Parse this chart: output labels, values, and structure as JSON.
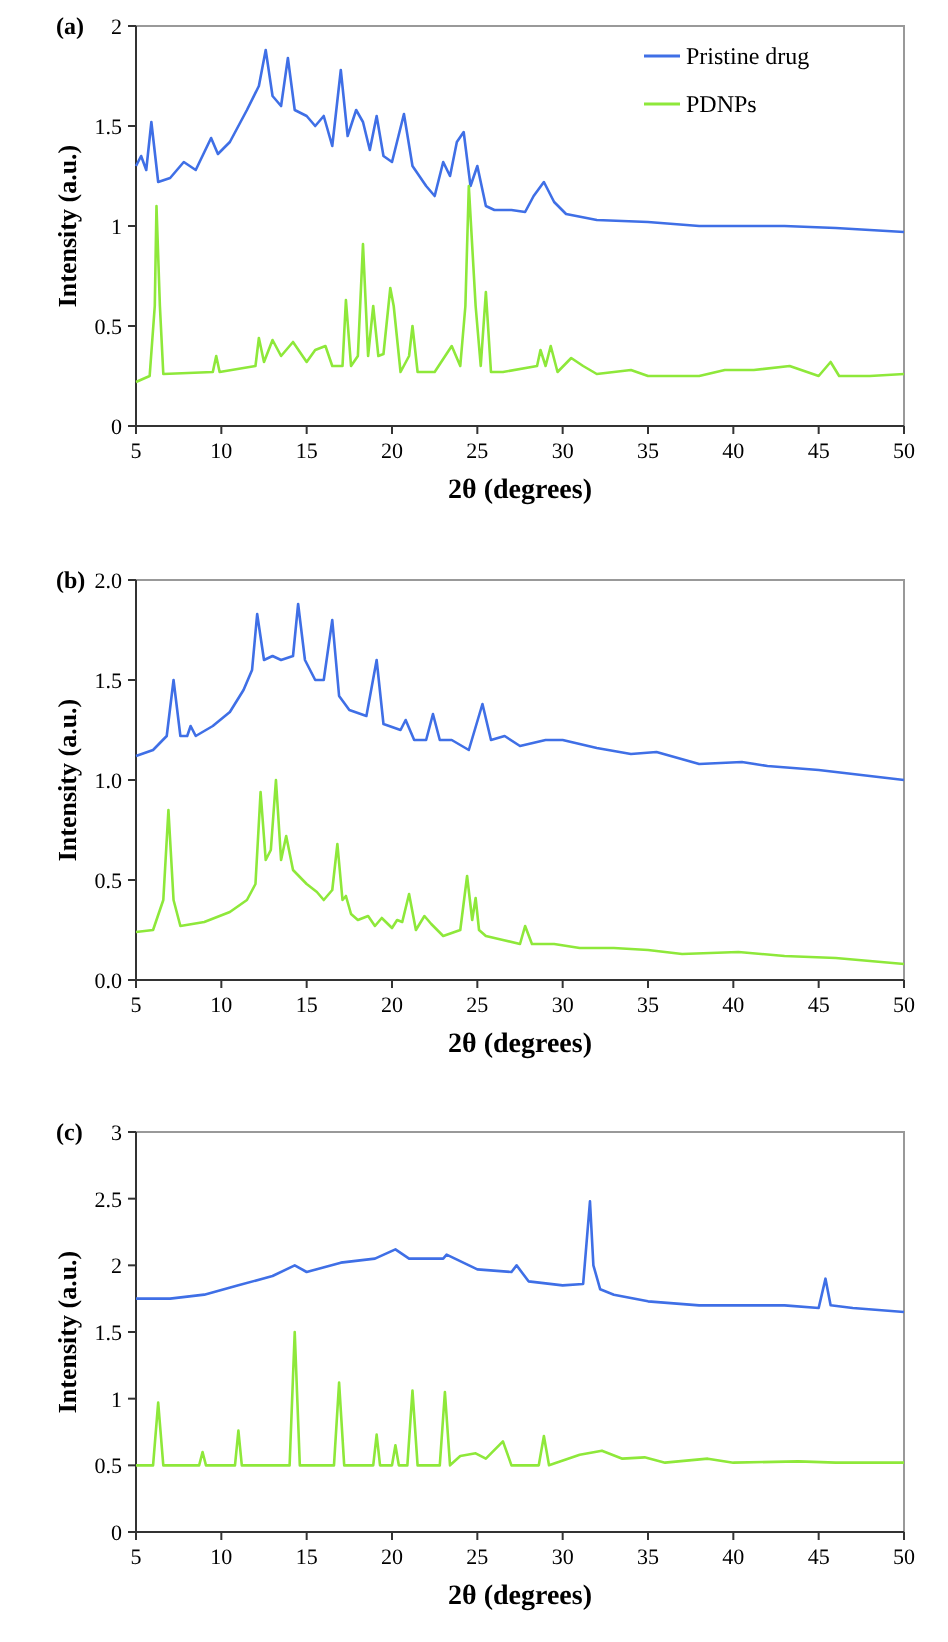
{
  "chart_data": [
    {
      "type": "line",
      "title": "(a)",
      "xlabel": "2θ (degrees)",
      "ylabel": "Intensity (a.u.)",
      "xlim": [
        5,
        50
      ],
      "xticks": [
        5,
        10,
        15,
        20,
        25,
        30,
        35,
        40,
        45,
        50
      ],
      "ylim": [
        0,
        2
      ],
      "yticks": [
        0,
        0.5,
        1,
        1.5,
        2
      ],
      "legend": "top right",
      "series": [
        {
          "name": "Pristine drug",
          "color": "#3f6fe6",
          "x": [
            5,
            5.3,
            5.6,
            5.9,
            6.3,
            7,
            7.8,
            8.5,
            9.4,
            9.8,
            10.5,
            11.5,
            12.2,
            12.6,
            13,
            13.5,
            13.9,
            14.3,
            15,
            15.5,
            16,
            16.5,
            17,
            17.4,
            17.9,
            18.3,
            18.7,
            19.1,
            19.5,
            20,
            20.7,
            21.2,
            22,
            22.5,
            23,
            23.4,
            23.8,
            24.2,
            24.6,
            25,
            25.5,
            26,
            27,
            27.8,
            28.3,
            28.9,
            29.5,
            30.2,
            32,
            35,
            38,
            40,
            43,
            46,
            48,
            50
          ],
          "values": [
            1.3,
            1.35,
            1.28,
            1.52,
            1.22,
            1.24,
            1.32,
            1.28,
            1.44,
            1.36,
            1.42,
            1.58,
            1.7,
            1.88,
            1.65,
            1.6,
            1.84,
            1.58,
            1.55,
            1.5,
            1.55,
            1.4,
            1.78,
            1.45,
            1.58,
            1.52,
            1.38,
            1.55,
            1.35,
            1.32,
            1.56,
            1.3,
            1.2,
            1.15,
            1.32,
            1.25,
            1.42,
            1.47,
            1.2,
            1.3,
            1.1,
            1.08,
            1.08,
            1.07,
            1.15,
            1.22,
            1.12,
            1.06,
            1.03,
            1.02,
            1.0,
            1.0,
            1.0,
            0.99,
            0.98,
            0.97
          ]
        },
        {
          "name": "PDNPs",
          "color": "#8ee83a",
          "x": [
            5,
            5.8,
            6.1,
            6.2,
            6.4,
            6.6,
            9.5,
            9.7,
            9.9,
            12,
            12.2,
            12.5,
            13,
            13.5,
            14.2,
            15,
            15.5,
            16.1,
            16.5,
            17.1,
            17.3,
            17.6,
            18,
            18.3,
            18.6,
            18.9,
            19.2,
            19.5,
            19.9,
            20.1,
            20.5,
            21,
            21.2,
            21.5,
            22.5,
            23.5,
            24,
            24.3,
            24.5,
            24.9,
            25.2,
            25.5,
            25.8,
            26.5,
            28.5,
            28.7,
            29,
            29.3,
            29.7,
            30.5,
            31.2,
            32,
            34,
            35,
            38,
            39.5,
            41.2,
            43.3,
            45,
            45.7,
            46.2,
            48,
            50
          ],
          "values": [
            0.22,
            0.25,
            0.6,
            1.1,
            0.6,
            0.26,
            0.27,
            0.35,
            0.27,
            0.3,
            0.44,
            0.32,
            0.43,
            0.35,
            0.42,
            0.32,
            0.38,
            0.4,
            0.3,
            0.3,
            0.63,
            0.3,
            0.35,
            0.91,
            0.35,
            0.6,
            0.35,
            0.36,
            0.69,
            0.6,
            0.27,
            0.35,
            0.5,
            0.27,
            0.27,
            0.4,
            0.3,
            0.6,
            1.2,
            0.6,
            0.3,
            0.67,
            0.27,
            0.27,
            0.3,
            0.38,
            0.3,
            0.4,
            0.27,
            0.34,
            0.3,
            0.26,
            0.28,
            0.25,
            0.25,
            0.28,
            0.28,
            0.3,
            0.25,
            0.32,
            0.25,
            0.25,
            0.26
          ]
        }
      ]
    },
    {
      "type": "line",
      "title": "(b)",
      "xlabel": "2θ (degrees)",
      "ylabel": "Intensity (a.u.)",
      "xlim": [
        5,
        50
      ],
      "xticks": [
        5,
        10,
        15,
        20,
        25,
        30,
        35,
        40,
        45,
        50
      ],
      "ylim": [
        0,
        2
      ],
      "yticks": [
        {
          "value": 0,
          "label": "0.0"
        },
        {
          "value": 0.5,
          "label": "0.5"
        },
        {
          "value": 1,
          "label": "1.0"
        },
        {
          "value": 1.5,
          "label": "1.5"
        },
        {
          "value": 2,
          "label": "2.0"
        }
      ],
      "series": [
        {
          "color": "#3f6fe6",
          "x": [
            5,
            6,
            6.8,
            7.2,
            7.6,
            8,
            8.2,
            8.5,
            9.5,
            10.5,
            11.3,
            11.8,
            12.1,
            12.5,
            13,
            13.5,
            14.2,
            14.5,
            14.9,
            15.5,
            16,
            16.5,
            16.9,
            17.5,
            18.5,
            19.1,
            19.5,
            20.5,
            20.8,
            21.3,
            22,
            22.4,
            22.8,
            23.5,
            24.5,
            25.3,
            25.8,
            26.6,
            27.5,
            29,
            30,
            32,
            34,
            35.5,
            38,
            40.5,
            42,
            45,
            48,
            50
          ],
          "values": [
            1.12,
            1.15,
            1.22,
            1.5,
            1.22,
            1.22,
            1.27,
            1.22,
            1.27,
            1.34,
            1.45,
            1.55,
            1.83,
            1.6,
            1.62,
            1.6,
            1.62,
            1.88,
            1.6,
            1.5,
            1.5,
            1.8,
            1.42,
            1.35,
            1.32,
            1.6,
            1.28,
            1.25,
            1.3,
            1.2,
            1.2,
            1.33,
            1.2,
            1.2,
            1.15,
            1.38,
            1.2,
            1.22,
            1.17,
            1.2,
            1.2,
            1.16,
            1.13,
            1.14,
            1.08,
            1.09,
            1.07,
            1.05,
            1.02,
            1.0
          ]
        },
        {
          "color": "#8ee83a",
          "x": [
            5,
            6,
            6.6,
            6.9,
            7.2,
            7.6,
            9,
            10.5,
            11.5,
            12,
            12.3,
            12.6,
            12.9,
            13.2,
            13.5,
            13.8,
            14.2,
            15,
            15.6,
            16,
            16.5,
            16.8,
            17.1,
            17.3,
            17.6,
            18,
            18.6,
            19,
            19.4,
            20,
            20.3,
            20.6,
            21,
            21.4,
            21.9,
            22.3,
            23,
            24,
            24.4,
            24.7,
            24.9,
            25.1,
            25.5,
            26.5,
            27.5,
            27.8,
            28.2,
            29.5,
            31,
            33,
            35,
            37,
            40.3,
            43,
            46,
            50
          ],
          "values": [
            0.24,
            0.25,
            0.4,
            0.85,
            0.4,
            0.27,
            0.29,
            0.34,
            0.4,
            0.48,
            0.94,
            0.6,
            0.65,
            1.0,
            0.6,
            0.72,
            0.55,
            0.48,
            0.44,
            0.4,
            0.45,
            0.68,
            0.4,
            0.42,
            0.33,
            0.3,
            0.32,
            0.27,
            0.31,
            0.26,
            0.3,
            0.29,
            0.43,
            0.25,
            0.32,
            0.28,
            0.22,
            0.25,
            0.52,
            0.3,
            0.41,
            0.25,
            0.22,
            0.2,
            0.18,
            0.27,
            0.18,
            0.18,
            0.16,
            0.16,
            0.15,
            0.13,
            0.14,
            0.12,
            0.11,
            0.08
          ]
        }
      ]
    },
    {
      "type": "line",
      "title": "(c)",
      "xlabel": "2θ (degrees)",
      "ylabel": "Intensity (a.u.)",
      "xlim": [
        5,
        50
      ],
      "xticks": [
        5,
        10,
        15,
        20,
        25,
        30,
        35,
        40,
        45,
        50
      ],
      "ylim": [
        0,
        3
      ],
      "yticks": [
        0,
        0.5,
        1,
        1.5,
        2,
        2.5,
        3
      ],
      "series": [
        {
          "color": "#3f6fe6",
          "x": [
            5,
            7,
            9,
            11,
            13,
            14.3,
            15,
            17,
            19,
            20.2,
            21,
            23,
            23.2,
            25,
            27,
            27.3,
            28,
            30,
            31.2,
            31.6,
            31.8,
            32.2,
            33,
            35,
            38,
            40,
            43,
            45,
            45.4,
            45.7,
            47,
            50
          ],
          "values": [
            1.75,
            1.75,
            1.78,
            1.85,
            1.92,
            2.0,
            1.95,
            2.02,
            2.05,
            2.12,
            2.05,
            2.05,
            2.08,
            1.97,
            1.95,
            2.0,
            1.88,
            1.85,
            1.86,
            2.48,
            2.0,
            1.82,
            1.78,
            1.73,
            1.7,
            1.7,
            1.7,
            1.68,
            1.9,
            1.7,
            1.68,
            1.65
          ]
        },
        {
          "color": "#8ee83a",
          "x": [
            5,
            6,
            6.3,
            6.6,
            8.7,
            8.9,
            9.1,
            10.8,
            11,
            11.2,
            14,
            14.3,
            14.6,
            16.6,
            16.9,
            17.2,
            18.9,
            19.1,
            19.3,
            20,
            20.2,
            20.4,
            20.9,
            21.2,
            21.5,
            22.8,
            23.1,
            23.4,
            24,
            24.9,
            25.5,
            26.5,
            27,
            28.6,
            28.9,
            29.2,
            31,
            32.3,
            33.5,
            34.8,
            36,
            38.5,
            40,
            43.8,
            46,
            50
          ],
          "values": [
            0.5,
            0.5,
            0.97,
            0.5,
            0.5,
            0.6,
            0.5,
            0.5,
            0.76,
            0.5,
            0.5,
            1.5,
            0.5,
            0.5,
            1.12,
            0.5,
            0.5,
            0.73,
            0.5,
            0.5,
            0.65,
            0.5,
            0.5,
            1.06,
            0.5,
            0.5,
            1.05,
            0.5,
            0.57,
            0.59,
            0.55,
            0.68,
            0.5,
            0.5,
            0.72,
            0.5,
            0.58,
            0.61,
            0.55,
            0.56,
            0.52,
            0.55,
            0.52,
            0.53,
            0.52,
            0.52
          ]
        }
      ]
    }
  ]
}
